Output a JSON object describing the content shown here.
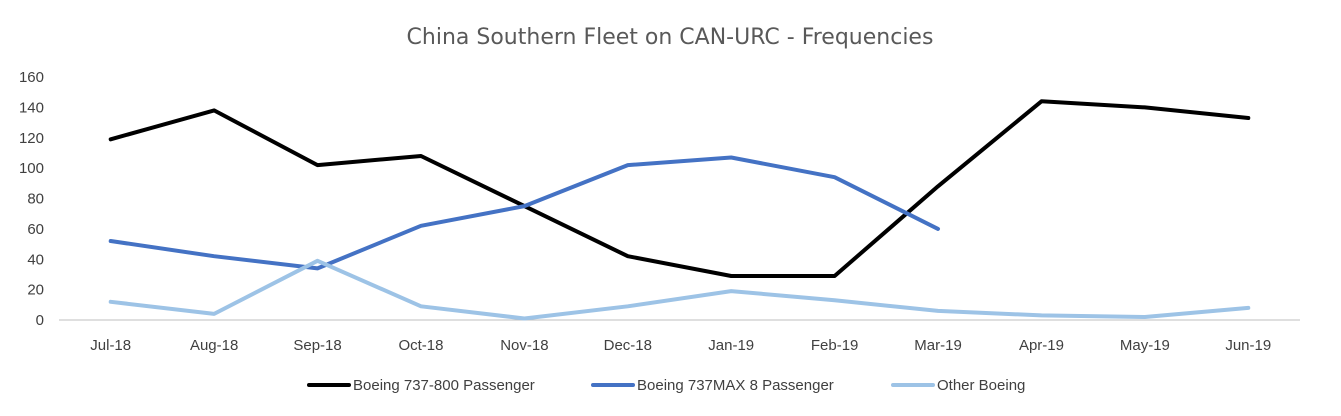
{
  "chart_data": {
    "type": "line",
    "title": "China Southern Fleet on CAN-URC - Frequencies",
    "xlabel": "",
    "ylabel": "",
    "categories": [
      "Jul-18",
      "Aug-18",
      "Sep-18",
      "Oct-18",
      "Nov-18",
      "Dec-18",
      "Jan-19",
      "Feb-19",
      "Mar-19",
      "Apr-19",
      "May-19",
      "Jun-19"
    ],
    "ylim": [
      0,
      160
    ],
    "yticks": [
      0,
      20,
      40,
      60,
      80,
      100,
      120,
      140,
      160
    ],
    "grid": false,
    "legend_position": "bottom",
    "series": [
      {
        "name": "Boeing 737-800 Passenger",
        "color": "#000000",
        "values": [
          119,
          138,
          102,
          108,
          75,
          42,
          29,
          29,
          88,
          144,
          140,
          133
        ]
      },
      {
        "name": "Boeing 737MAX 8 Passenger",
        "color": "#4472c4",
        "values": [
          52,
          42,
          34,
          62,
          75,
          102,
          107,
          94,
          60,
          null,
          null,
          null
        ]
      },
      {
        "name": "Other Boeing",
        "color": "#9dc3e6",
        "values": [
          12,
          4,
          39,
          9,
          1,
          9,
          19,
          13,
          6,
          3,
          2,
          8
        ]
      }
    ]
  }
}
